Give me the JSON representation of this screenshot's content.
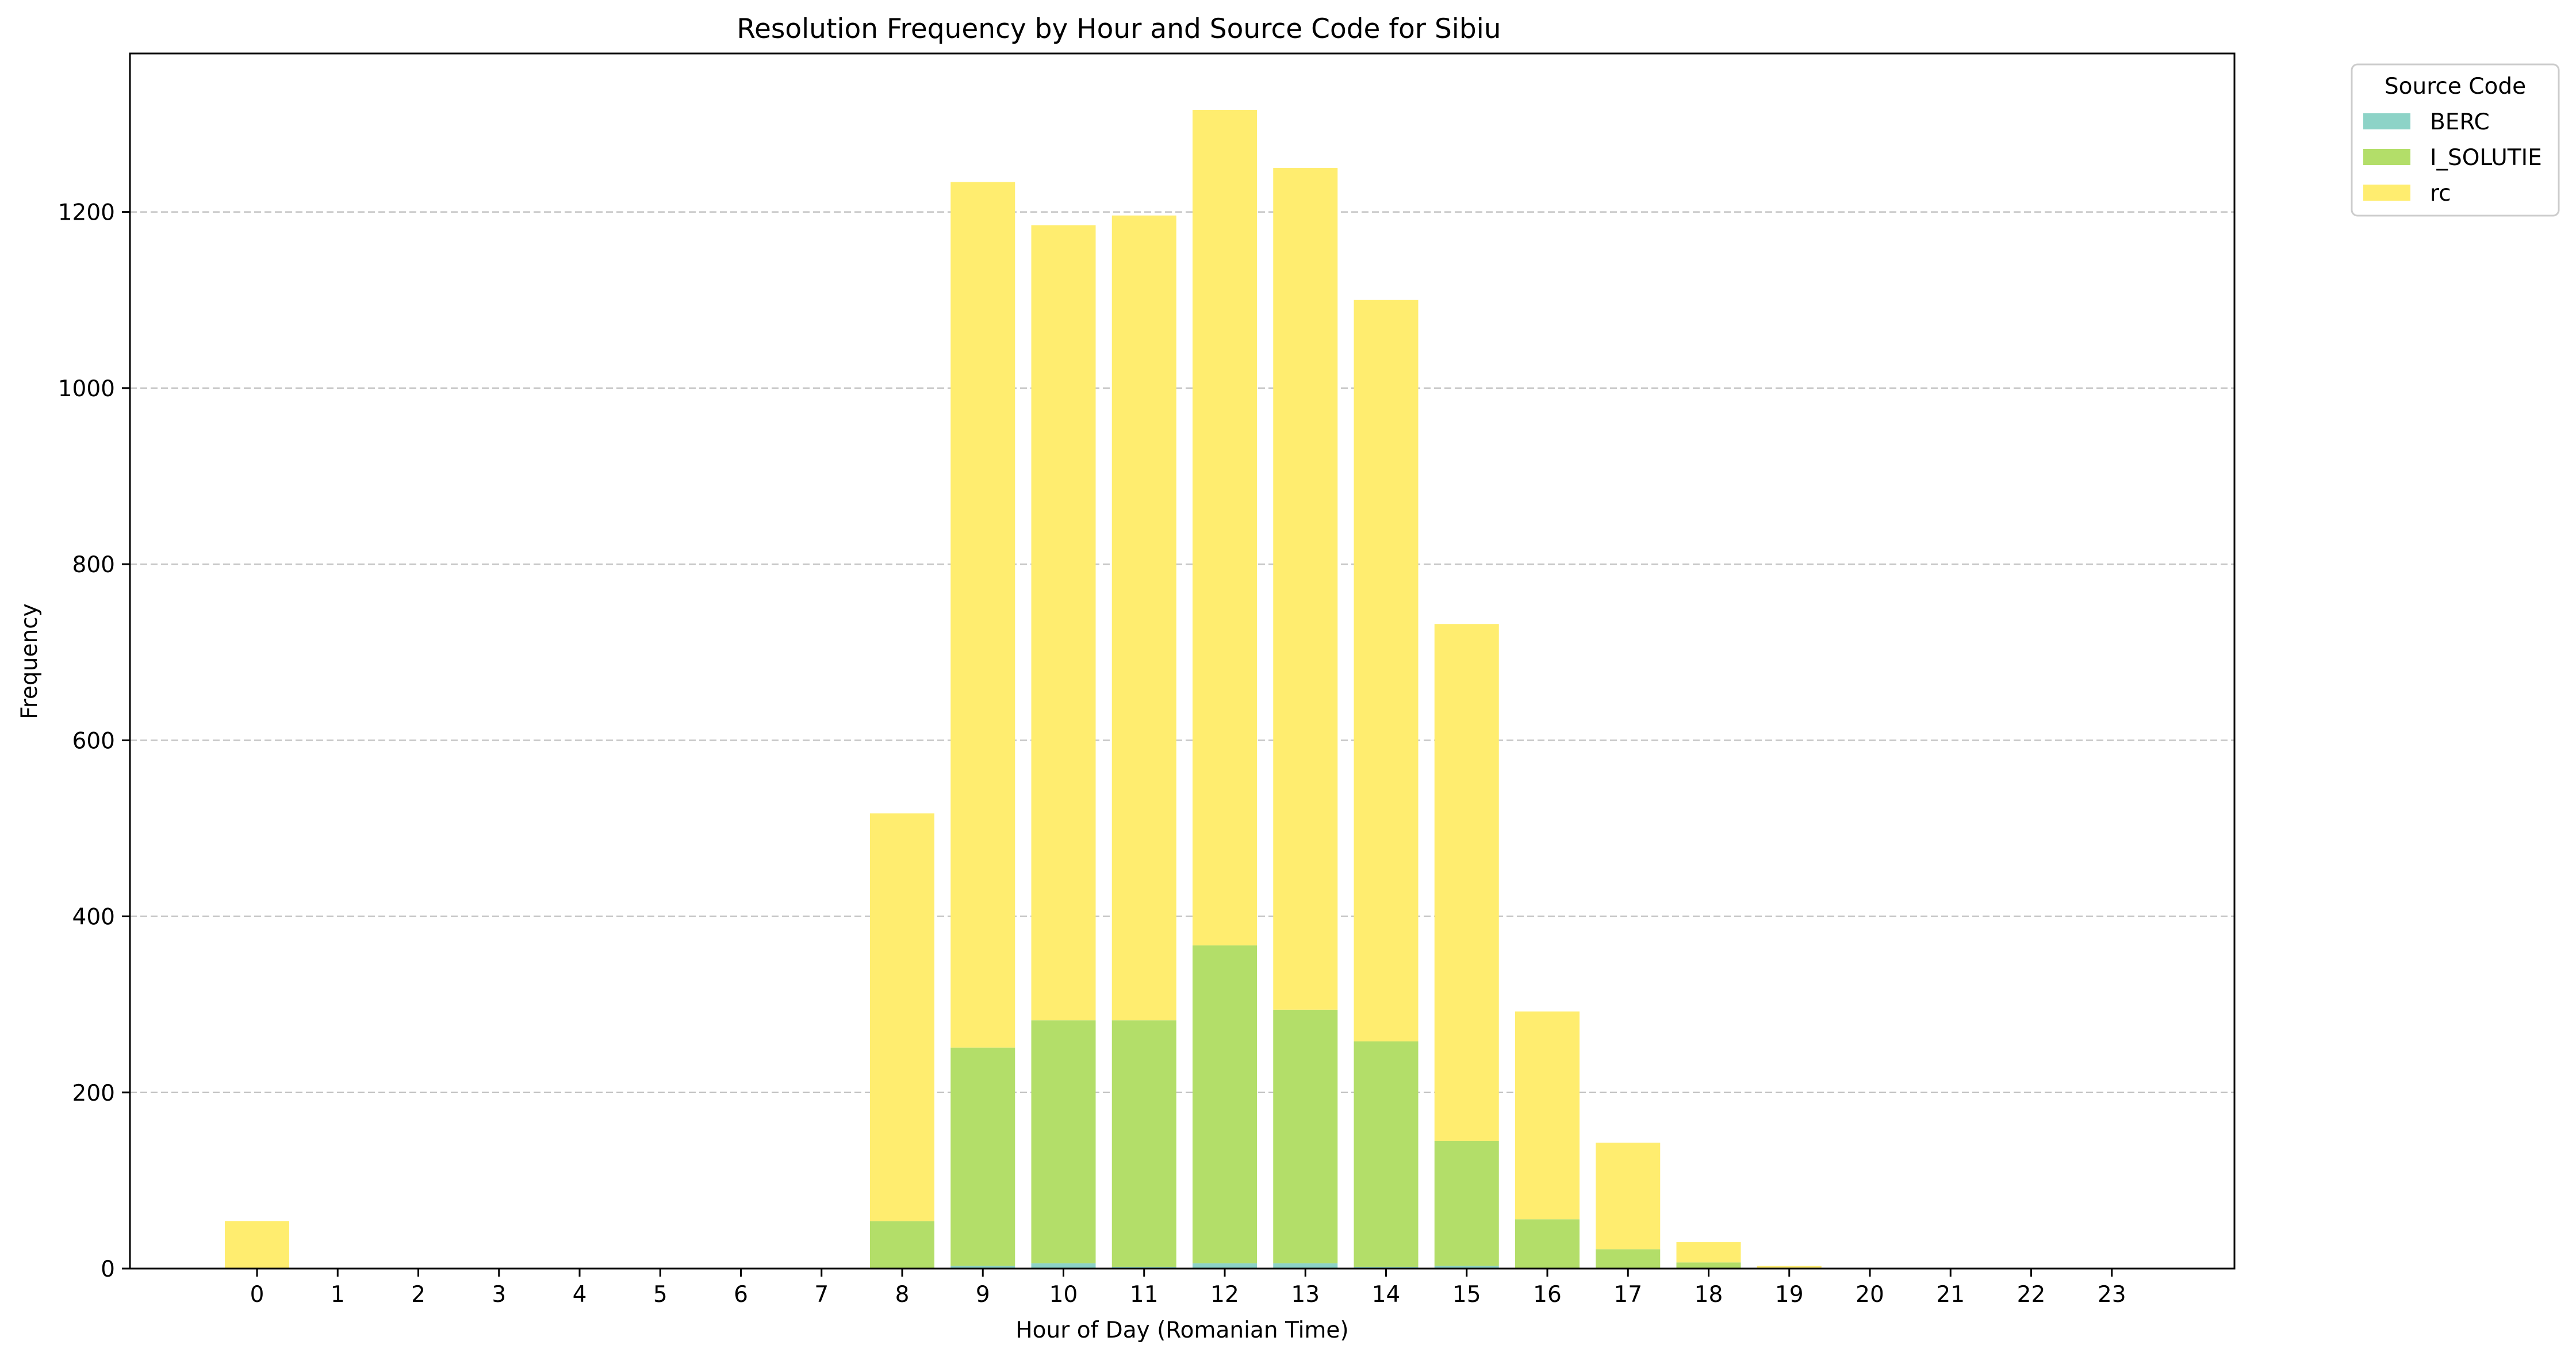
{
  "colors": {
    "BERC": "#8dd3c7",
    "I_SOLUTIE": "#b3de69",
    "rc": "#ffed6f",
    "grid": "#c4c4c4",
    "axis": "#000000"
  },
  "chart_data": {
    "type": "bar",
    "stacked": true,
    "title": "Resolution Frequency by Hour and Source Code for Sibiu",
    "xlabel": "Hour of Day (Romanian Time)",
    "ylabel": "Frequency",
    "ylim": [
      0,
      1380
    ],
    "yticks": [
      0,
      200,
      400,
      600,
      800,
      1000,
      1200
    ],
    "grid": "y-dashed",
    "legend": {
      "title": "Source Code",
      "placement": "outside-top-right"
    },
    "categories": [
      "0",
      "1",
      "2",
      "3",
      "4",
      "5",
      "6",
      "7",
      "8",
      "9",
      "10",
      "11",
      "12",
      "13",
      "14",
      "15",
      "16",
      "17",
      "18",
      "19",
      "20",
      "21",
      "22",
      "23"
    ],
    "series": [
      {
        "name": "BERC",
        "values": [
          0,
          0,
          0,
          0,
          0,
          0,
          0,
          0,
          0,
          3,
          6,
          2,
          6,
          6,
          2,
          3,
          0,
          0,
          0,
          0,
          0,
          0,
          0,
          0
        ]
      },
      {
        "name": "I_SOLUTIE",
        "values": [
          0,
          0,
          0,
          0,
          0,
          0,
          0,
          0,
          54,
          248,
          276,
          280,
          361,
          288,
          256,
          142,
          56,
          22,
          7,
          1,
          0,
          0,
          0,
          0
        ]
      },
      {
        "name": "rc",
        "values": [
          54,
          0,
          0,
          0,
          0,
          0,
          0,
          0,
          463,
          983,
          903,
          914,
          949,
          956,
          842,
          587,
          236,
          121,
          23,
          2,
          0,
          0,
          0,
          0
        ]
      }
    ]
  }
}
